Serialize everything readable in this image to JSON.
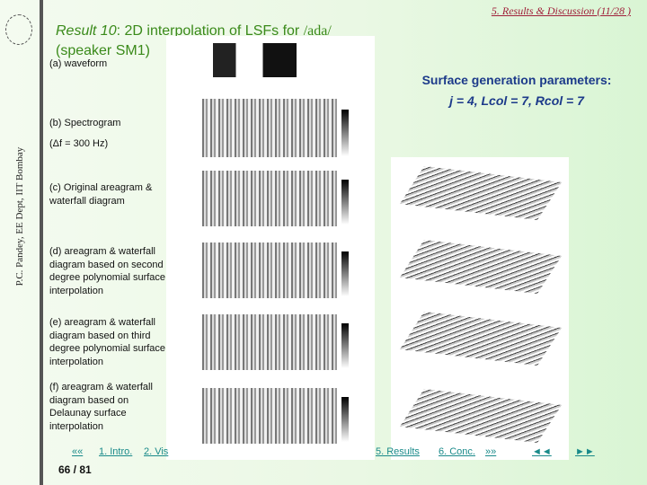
{
  "side": {
    "credit": "P.C. Pandey, EE Dept, IIT Bombay"
  },
  "section": "5. Results & Discussion (11/28 )",
  "title": {
    "result": "Result 10",
    "rest": ": 2D interpolation of LSFs for ",
    "phoneme": "/ada/",
    "speaker": "(speaker SM1)"
  },
  "labels": {
    "a": "(a) waveform",
    "b": "(b) Spectrogram",
    "b2": "(Δf = 300 Hz)",
    "c": "(c) Original areagram & waterfall diagram",
    "d": "(d) areagram & waterfall diagram based on second degree polynomial surface interpolation",
    "e": "(e) areagram & waterfall diagram based on third degree polynomial surface interpolation",
    "f": "(f) areagram & waterfall diagram based on Delaunay surface interpolation"
  },
  "params": {
    "heading": "Surface generation parameters:",
    "values": "j = 4, Lcol = 7, Rcol = 7"
  },
  "nav": {
    "first": "««",
    "intro": "1. Intro.",
    "vis": "2. Vis",
    "results": "5. Results",
    "conc": "6. Conc.",
    "prev_sec": "»»",
    "prev": "◄◄",
    "next": "►►"
  },
  "page": "66 / 81"
}
